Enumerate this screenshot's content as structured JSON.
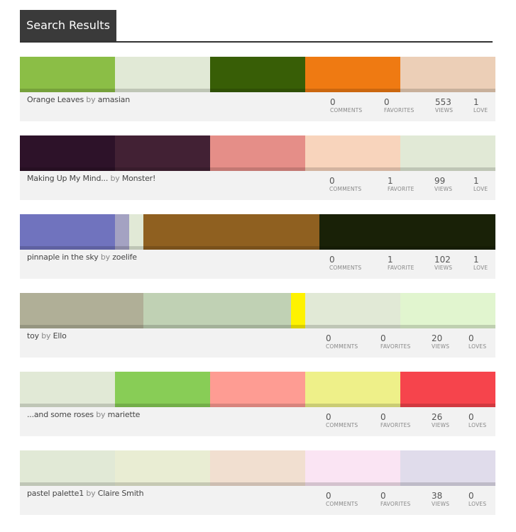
{
  "header": {
    "title": "Search Results"
  },
  "by_word": "by",
  "results": [
    {
      "name": "Orange Leaves",
      "author": "amasian",
      "swatches": [
        {
          "color": "#8bbe46",
          "share": 20
        },
        {
          "color": "#e1e9d6",
          "share": 20
        },
        {
          "color": "#385e06",
          "share": 20
        },
        {
          "color": "#ef7a12",
          "share": 20
        },
        {
          "color": "#eccfb7",
          "share": 20
        }
      ],
      "stats": {
        "comments": {
          "value": "0",
          "label": "COMMENTS"
        },
        "favorites": {
          "value": "0",
          "label": "FAVORITES"
        },
        "views": {
          "value": "553",
          "label": "VIEWS"
        },
        "loves": {
          "value": "1",
          "label": "LOVE"
        }
      }
    },
    {
      "name": "Making Up My Mind...",
      "author": "Monster!",
      "swatches": [
        {
          "color": "#2d1229",
          "share": 20
        },
        {
          "color": "#422134",
          "share": 20
        },
        {
          "color": "#e58e88",
          "share": 20
        },
        {
          "color": "#f8d4bc",
          "share": 20
        },
        {
          "color": "#e1e9d6",
          "share": 20
        }
      ],
      "stats": {
        "comments": {
          "value": "0",
          "label": "COMMENTS"
        },
        "favorites": {
          "value": "1",
          "label": "FAVORITE"
        },
        "views": {
          "value": "99",
          "label": "VIEWS"
        },
        "loves": {
          "value": "1",
          "label": "LOVE"
        }
      }
    },
    {
      "name": "pinnaple in the sky",
      "author": "zoelife",
      "swatches": [
        {
          "color": "#7073be",
          "share": 20
        },
        {
          "color": "#a4a2c2",
          "share": 3
        },
        {
          "color": "#e1e9d6",
          "share": 3
        },
        {
          "color": "#8f6020",
          "share": 37
        },
        {
          "color": "#192107",
          "share": 37
        }
      ],
      "stats": {
        "comments": {
          "value": "0",
          "label": "COMMENTS"
        },
        "favorites": {
          "value": "1",
          "label": "FAVORITE"
        },
        "views": {
          "value": "102",
          "label": "VIEWS"
        },
        "loves": {
          "value": "1",
          "label": "LOVE"
        }
      }
    },
    {
      "name": "toy",
      "author": "Ello",
      "swatches": [
        {
          "color": "#b0af97",
          "share": 26
        },
        {
          "color": "#c0d1b4",
          "share": 31
        },
        {
          "color": "#fef200",
          "share": 3
        },
        {
          "color": "#e1e9d6",
          "share": 20
        },
        {
          "color": "#e1f5cf",
          "share": 20
        }
      ],
      "stats": {
        "comments": {
          "value": "0",
          "label": "COMMENTS"
        },
        "favorites": {
          "value": "0",
          "label": "FAVORITES"
        },
        "views": {
          "value": "20",
          "label": "VIEWS"
        },
        "loves": {
          "value": "0",
          "label": "LOVES"
        }
      }
    },
    {
      "name": "...and some roses",
      "author": "mariette",
      "swatches": [
        {
          "color": "#e1e9d6",
          "share": 20
        },
        {
          "color": "#88cd56",
          "share": 20
        },
        {
          "color": "#fe9c93",
          "share": 20
        },
        {
          "color": "#eef089",
          "share": 20
        },
        {
          "color": "#f6444c",
          "share": 20
        }
      ],
      "stats": {
        "comments": {
          "value": "0",
          "label": "COMMENTS"
        },
        "favorites": {
          "value": "0",
          "label": "FAVORITES"
        },
        "views": {
          "value": "26",
          "label": "VIEWS"
        },
        "loves": {
          "value": "0",
          "label": "LOVES"
        }
      }
    },
    {
      "name": "pastel palette1",
      "author": "Claire Smith",
      "swatches": [
        {
          "color": "#e1e9d6",
          "share": 20
        },
        {
          "color": "#e9edd3",
          "share": 20
        },
        {
          "color": "#f1dfd0",
          "share": 20
        },
        {
          "color": "#fae4f3",
          "share": 20
        },
        {
          "color": "#e0dceb",
          "share": 20
        }
      ],
      "stats": {
        "comments": {
          "value": "0",
          "label": "COMMENTS"
        },
        "favorites": {
          "value": "0",
          "label": "FAVORITES"
        },
        "views": {
          "value": "38",
          "label": "VIEWS"
        },
        "loves": {
          "value": "0",
          "label": "LOVES"
        }
      }
    }
  ]
}
